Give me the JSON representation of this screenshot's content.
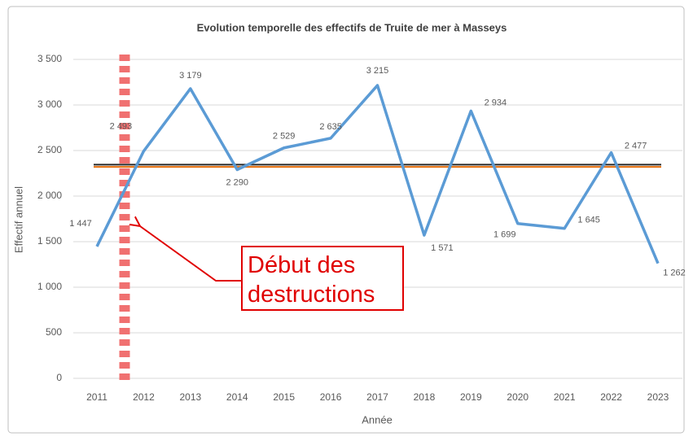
{
  "chart_data": {
    "type": "line",
    "title": "Evolution temporelle des effectifs de Truite de mer à Masseys",
    "x_label": "Année",
    "y_label": "Effectif annuel",
    "categories": [
      "2011",
      "2012",
      "2013",
      "2014",
      "2015",
      "2016",
      "2017",
      "2018",
      "2019",
      "2020",
      "2021",
      "2022",
      "2023"
    ],
    "series": [
      {
        "name": "Effectif annuel",
        "color": "#5b9bd5",
        "values": [
          1447,
          2493,
          3179,
          2290,
          2529,
          2635,
          3215,
          1571,
          2934,
          1699,
          1645,
          2477,
          1262
        ],
        "value_labels": [
          "1 447",
          "2 493",
          "3 179",
          "2 290",
          "2 529",
          "2 635",
          "3 215",
          "1 571",
          "2 934",
          "1 699",
          "1 645",
          "2 477",
          "1 262"
        ]
      }
    ],
    "reference_lines": [
      {
        "value": 2345,
        "color": "#262626"
      },
      {
        "value": 2320,
        "color": "#e46c0a"
      }
    ],
    "ylim": [
      0,
      3500
    ],
    "yticks": [
      0,
      500,
      {
        "value": 1000,
        "label": "1 000"
      },
      {
        "value": 1500,
        "label": "1 500"
      },
      {
        "value": 2000,
        "label": "2 000"
      },
      {
        "value": 2500,
        "label": "2 500"
      },
      {
        "value": 3000,
        "label": "3 000"
      },
      {
        "value": 3500,
        "label": "3 500"
      }
    ],
    "grid": true,
    "annotation": {
      "lines": [
        "Début des",
        "destructions"
      ],
      "color": "#e00000"
    }
  }
}
